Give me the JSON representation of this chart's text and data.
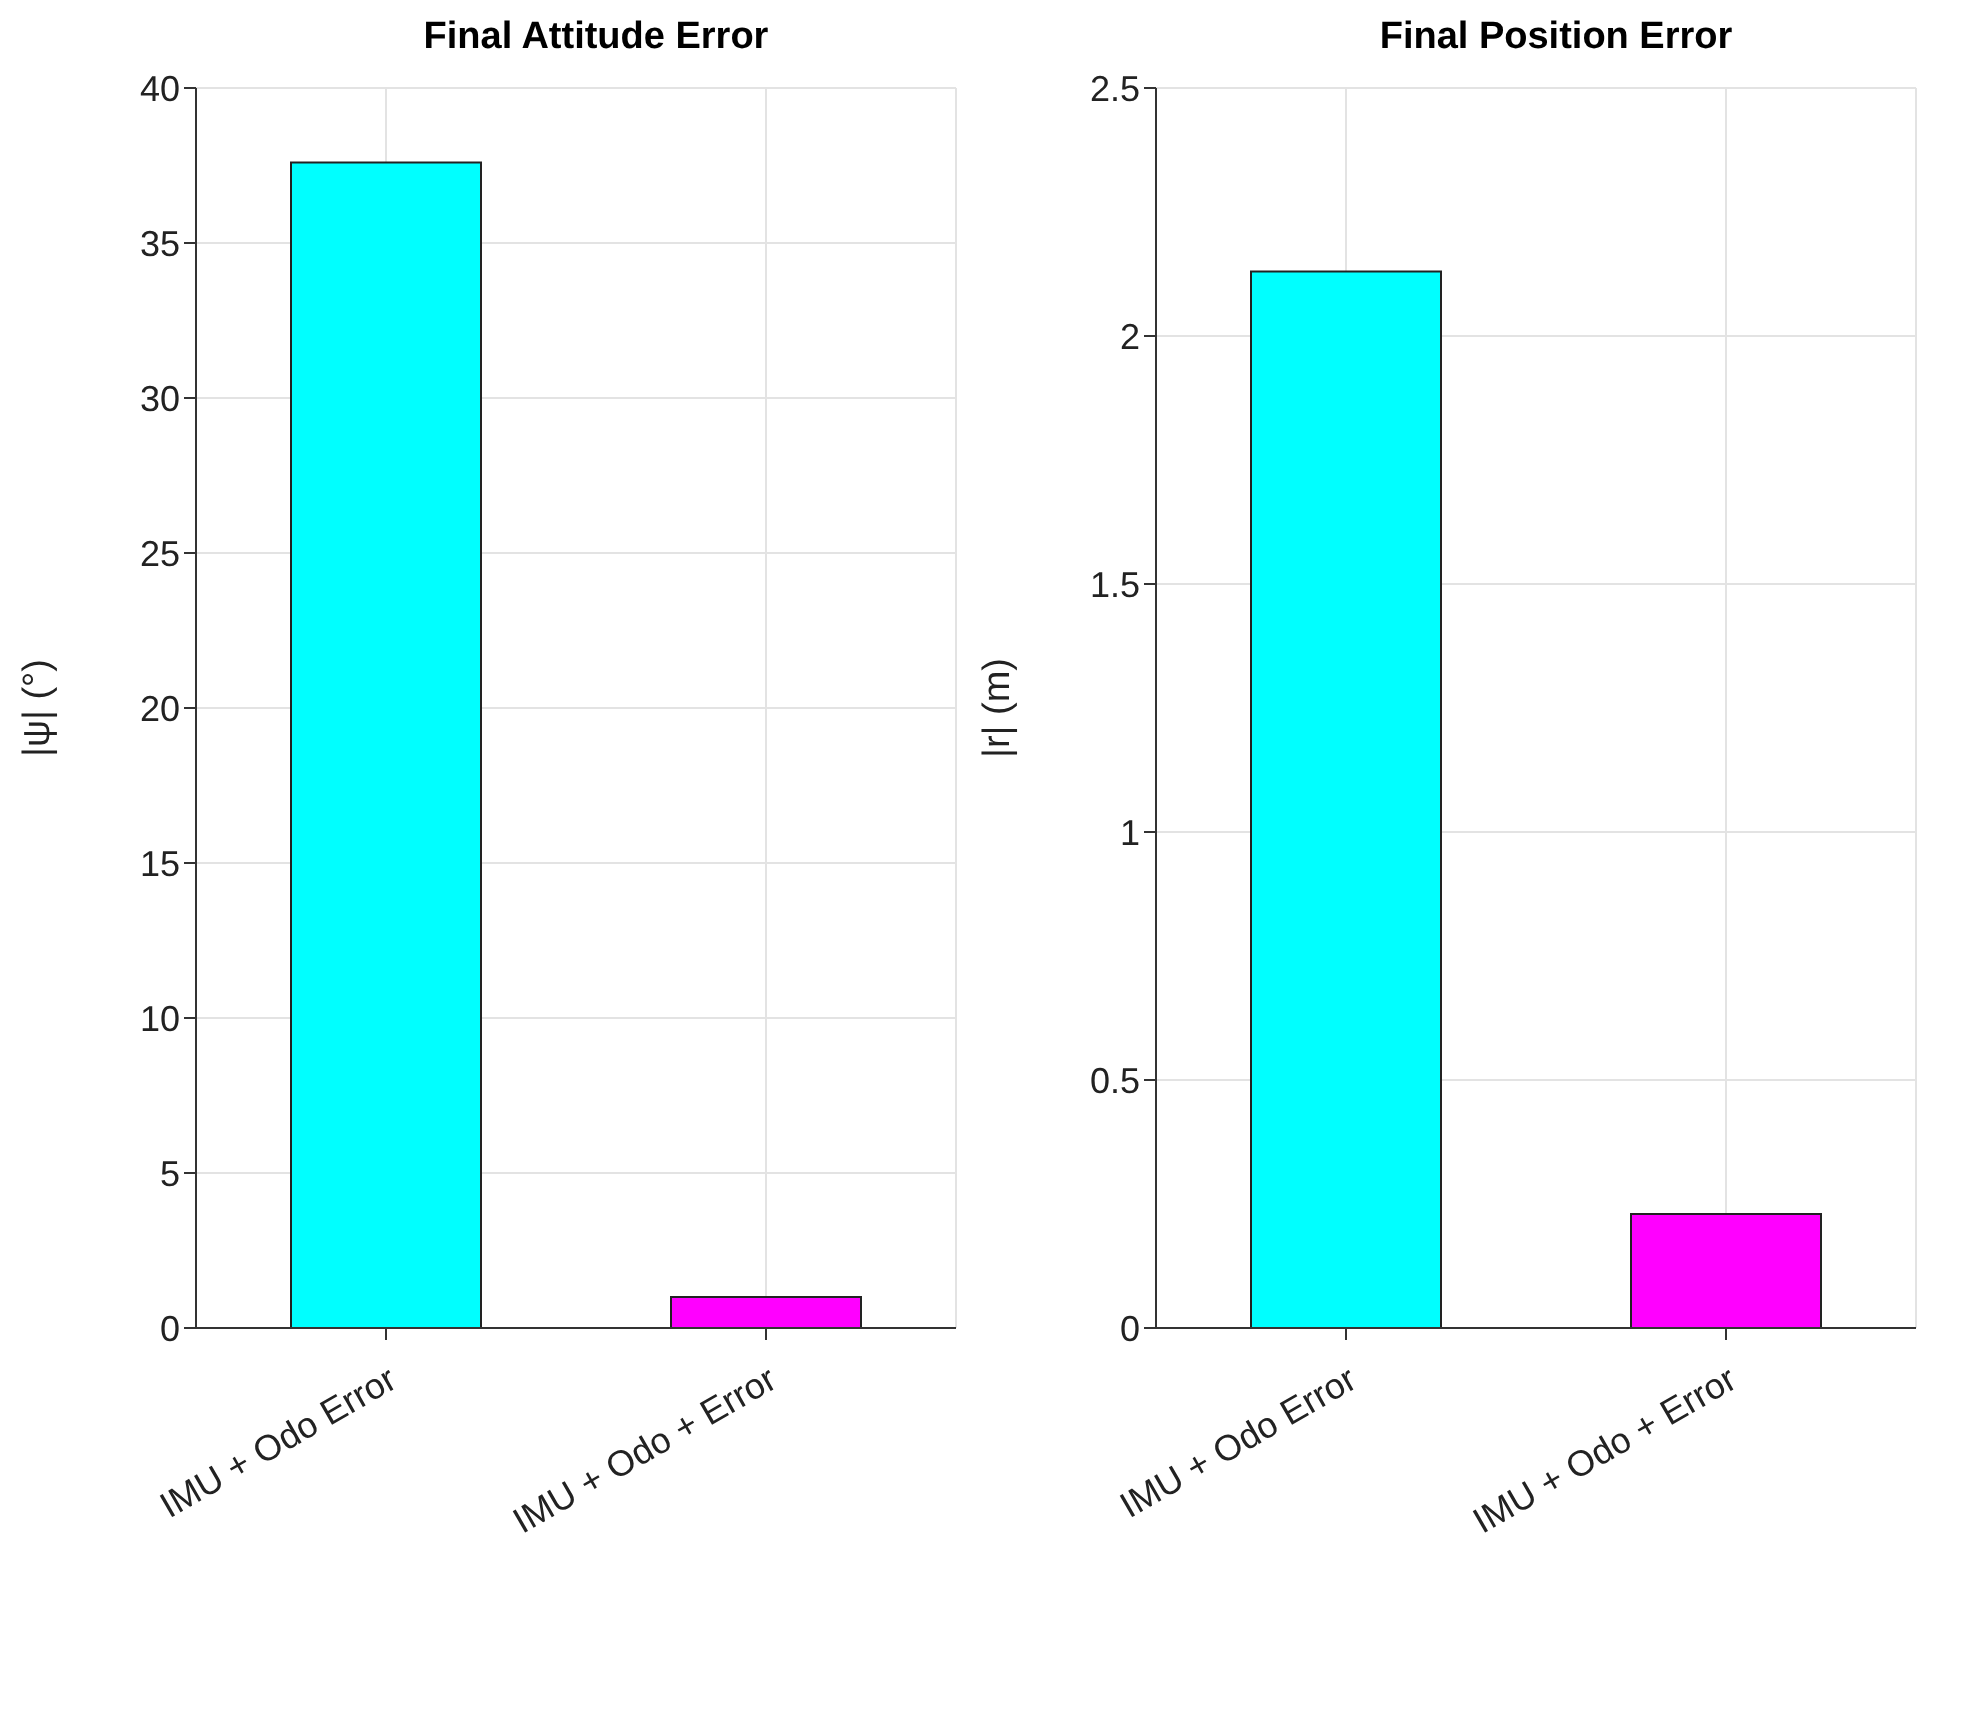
{
  "chart_data": [
    {
      "type": "bar",
      "title": "Final Attitude Error",
      "ylabel": "|ψ|  (°)",
      "categories": [
        "IMU + Odo Error",
        "IMU + Odo + Error"
      ],
      "values": [
        37.6,
        1.0
      ],
      "colors": [
        "#00ffff",
        "#ff00ff"
      ],
      "ylim": [
        0,
        40
      ],
      "yticks": [
        0,
        5,
        10,
        15,
        20,
        25,
        30,
        35,
        40
      ],
      "grid": true
    },
    {
      "type": "bar",
      "title": "Final Position Error",
      "ylabel": "|r|  (m)",
      "categories": [
        "IMU + Odo Error",
        "IMU + Odo + Error"
      ],
      "values": [
        2.13,
        0.23
      ],
      "colors": [
        "#00ffff",
        "#ff00ff"
      ],
      "ylim": [
        0,
        2.5
      ],
      "yticks": [
        0,
        0.5,
        1,
        1.5,
        2,
        2.5
      ],
      "grid": true
    }
  ]
}
